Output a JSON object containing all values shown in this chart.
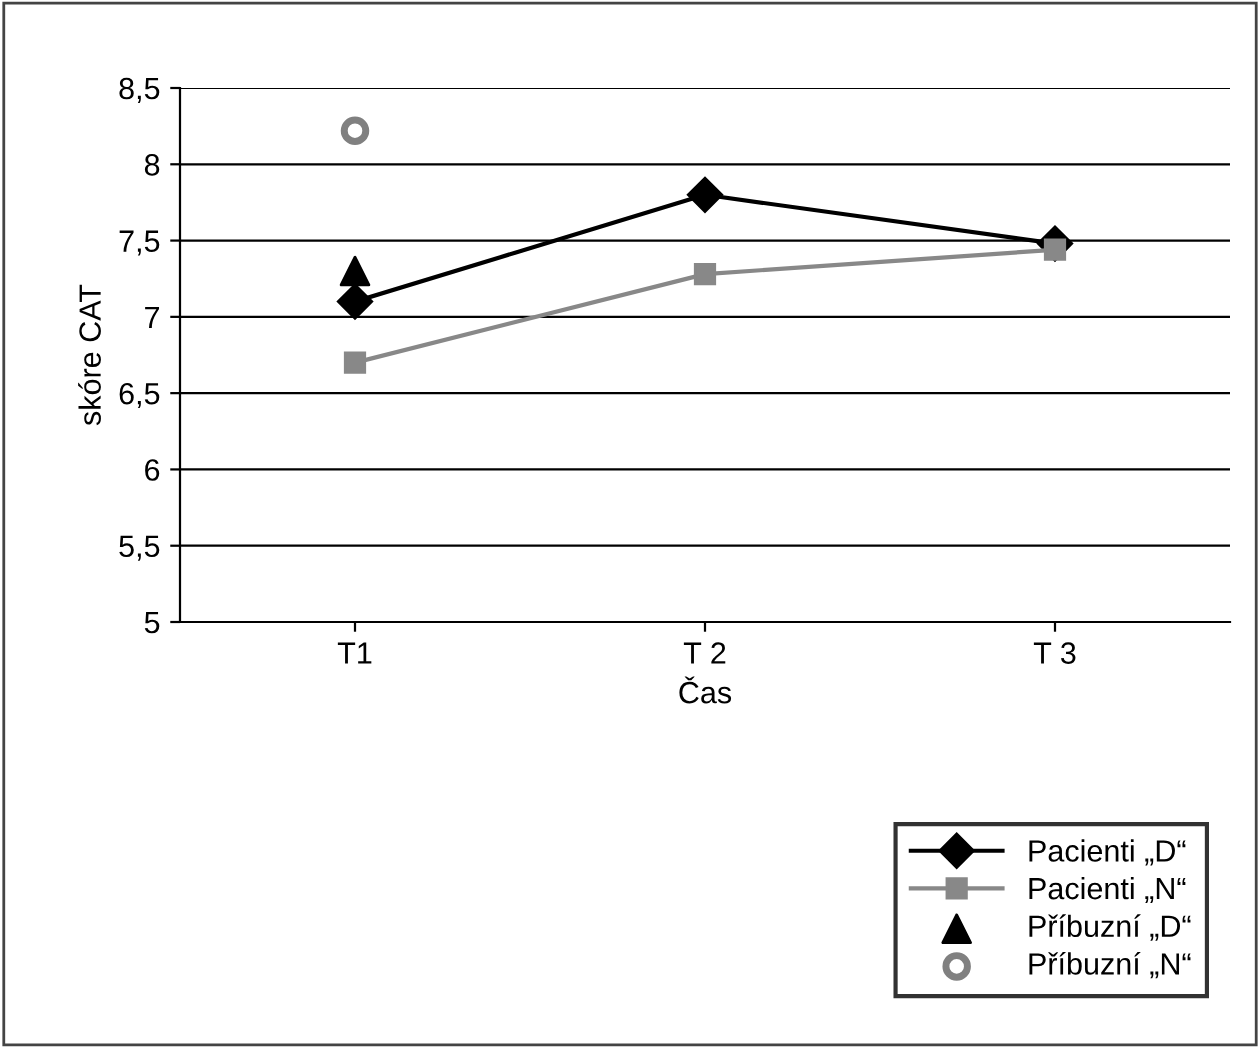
{
  "chart_data": {
    "type": "line",
    "xlabel": "Čas",
    "ylabel": "skóre CAT",
    "categories": [
      "T1",
      "T 2",
      "T 3"
    ],
    "series": [
      {
        "name": "Pacienti „D“",
        "color": "#000000",
        "marker": "diamond",
        "values": [
          7.1,
          7.8,
          7.48
        ]
      },
      {
        "name": "Pacienti „N“",
        "color": "#888888",
        "marker": "square",
        "values": [
          6.7,
          7.28,
          7.44
        ]
      },
      {
        "name": "Příbuzní „D“",
        "type": "scatter",
        "color": "#000000",
        "marker": "triangle",
        "values": [
          7.3,
          null,
          null
        ]
      },
      {
        "name": "Příbuzní „N“",
        "type": "scatter",
        "color": "#808080",
        "marker": "circle",
        "values": [
          8.22,
          null,
          null
        ]
      }
    ],
    "ylim": [
      5,
      8.5
    ],
    "yticks": [
      5,
      {
        "value": 5.5,
        "label": "5,5"
      },
      6,
      {
        "value": 6.5,
        "label": "6,5"
      },
      7,
      {
        "value": 7.5,
        "label": "7,5"
      },
      8,
      {
        "value": 8.5,
        "label": "8,5"
      }
    ],
    "grid": "y",
    "legend": "bottom right"
  }
}
